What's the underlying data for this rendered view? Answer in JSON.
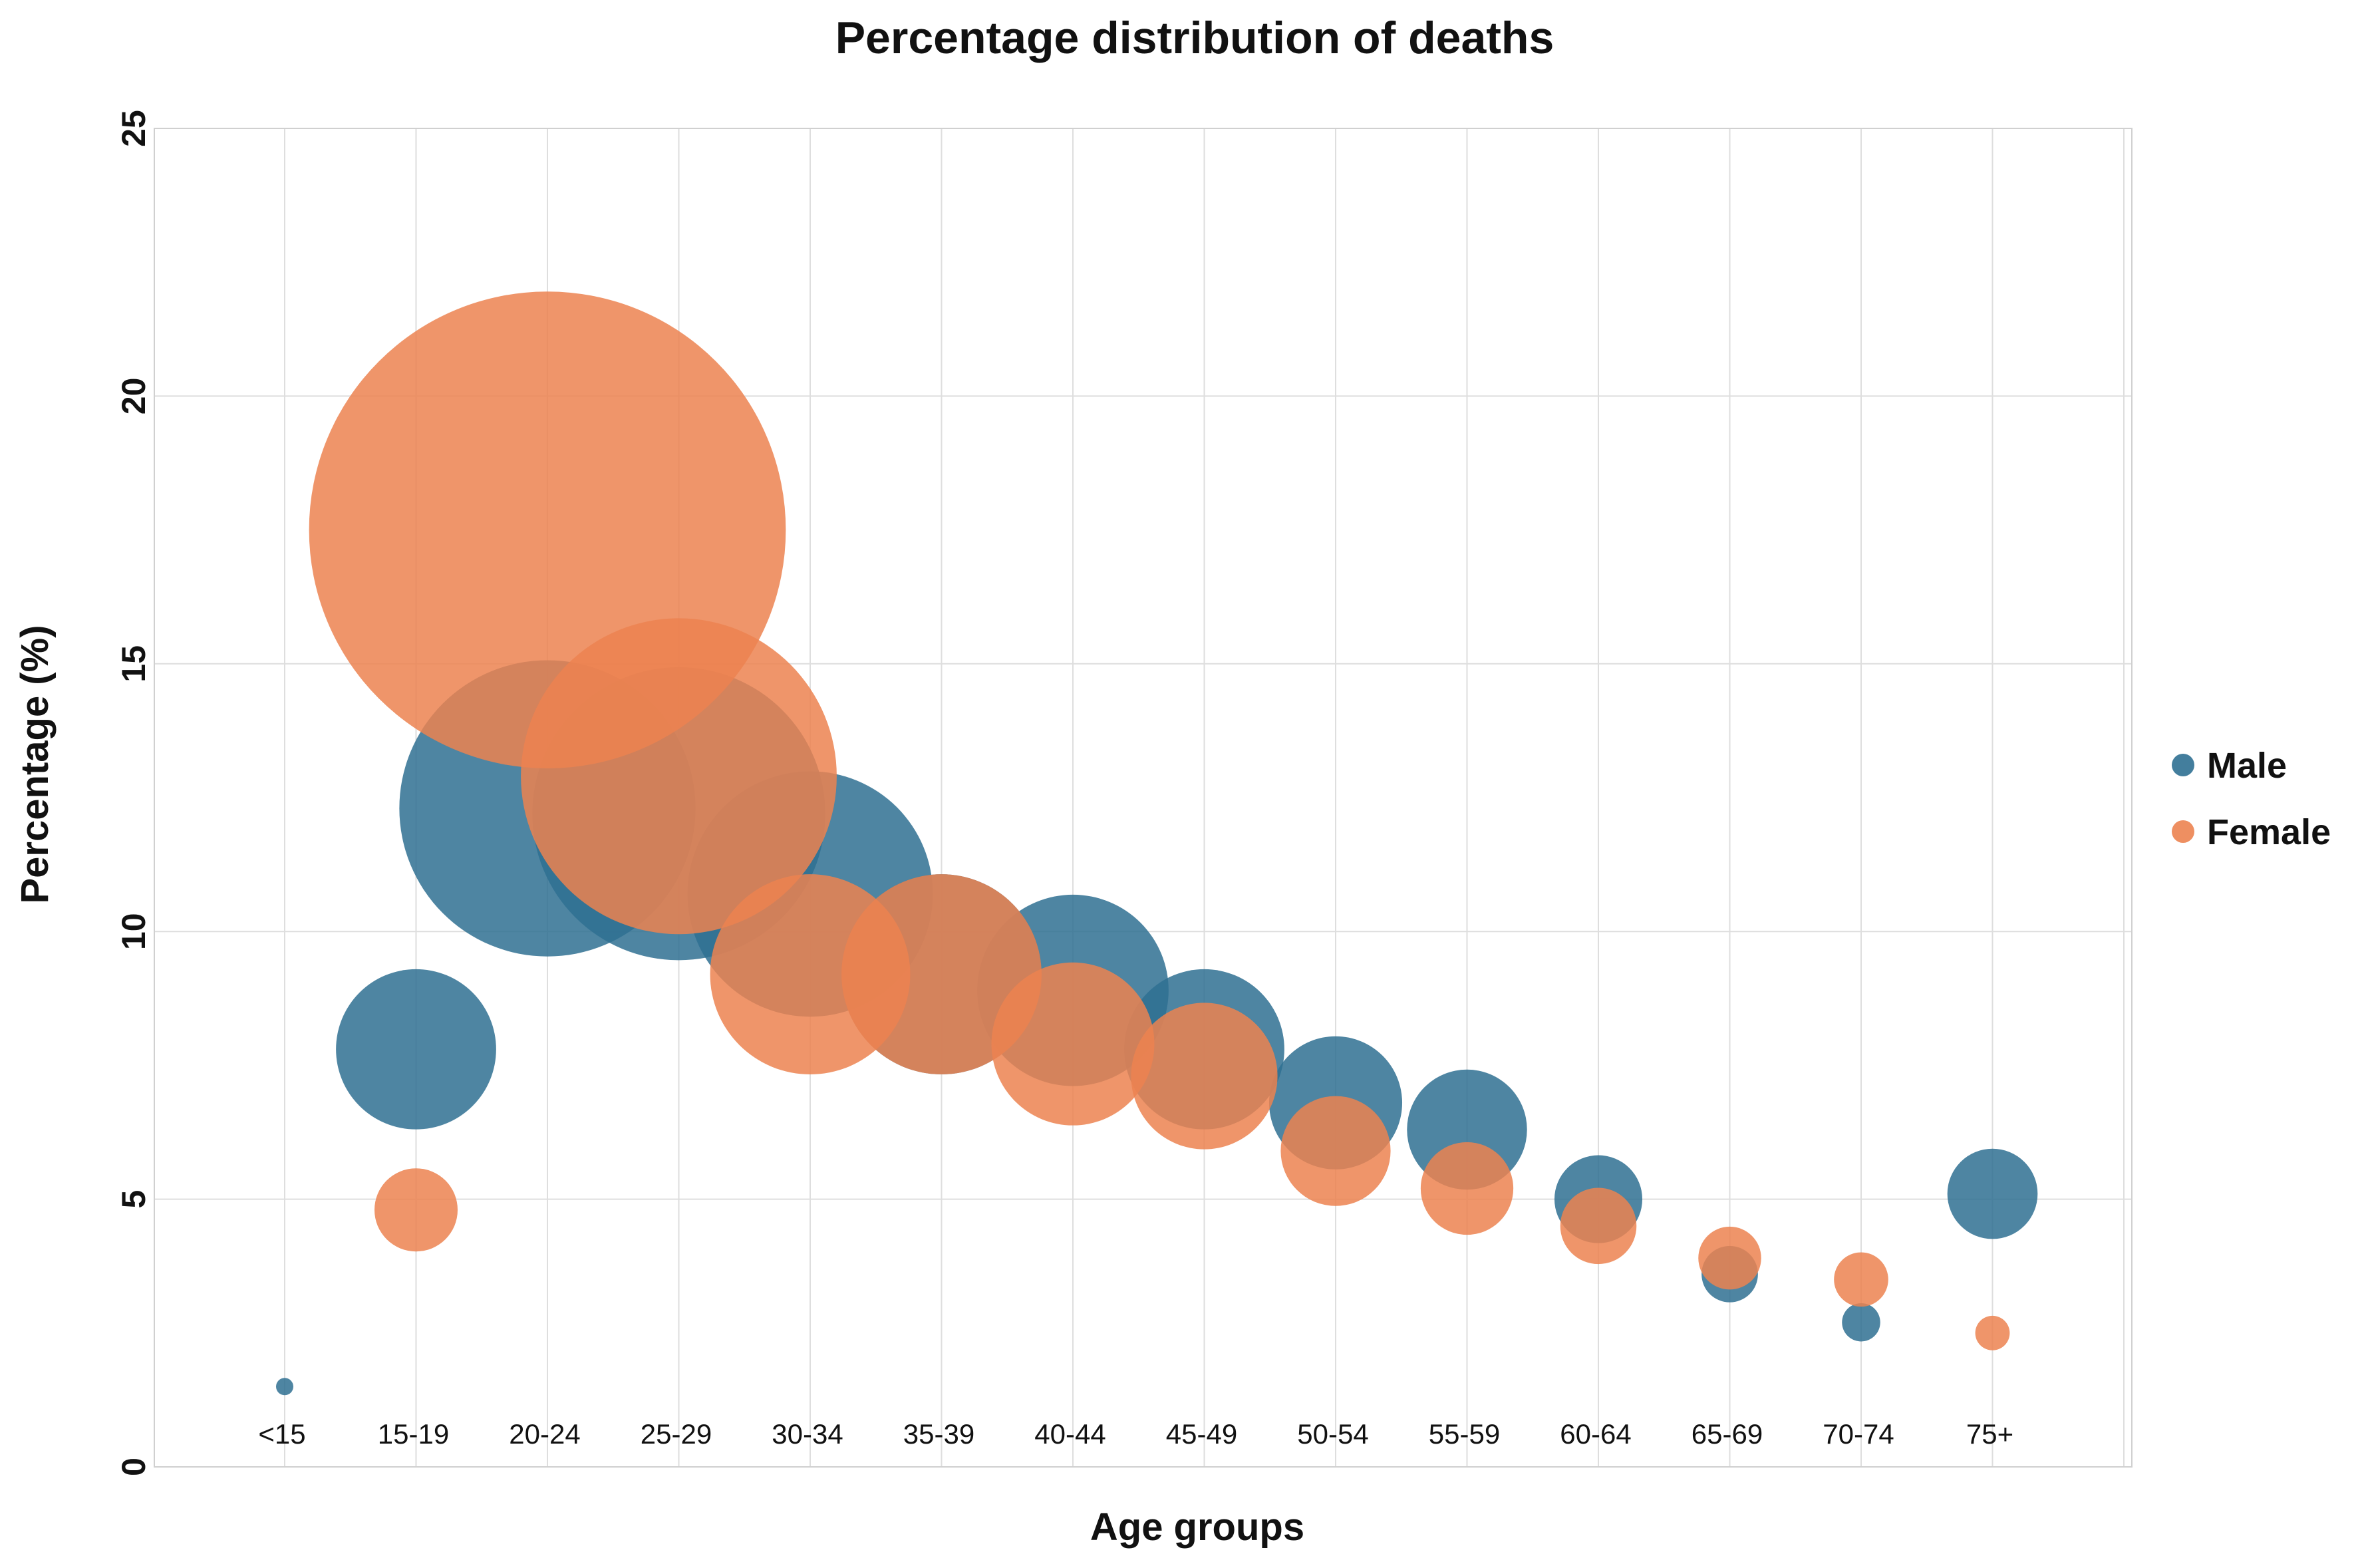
{
  "chart_data": {
    "type": "scatter",
    "subtype": "bubble",
    "title": "Percentage distribution of deaths",
    "xlabel": "Age groups",
    "ylabel": "Percentage (%)",
    "ylim": [
      0,
      25
    ],
    "yticks": [
      "0",
      "5",
      "10",
      "15",
      "20",
      "25"
    ],
    "grid": true,
    "legend_position": "right",
    "categories": [
      "<15",
      "15-19",
      "20-24",
      "25-29",
      "30-34",
      "35-39",
      "40-44",
      "45-49",
      "50-54",
      "55-59",
      "60-64",
      "65-69",
      "70-74",
      "75+"
    ],
    "series": [
      {
        "name": "Male",
        "color": "#2f7092",
        "values": [
          1.5,
          7.8,
          12.3,
          12.2,
          10.7,
          9.2,
          8.9,
          7.8,
          6.8,
          6.3,
          5.0,
          3.6,
          2.7,
          5.1
        ]
      },
      {
        "name": "Female",
        "color": "#ec8350",
        "values": [
          null,
          4.8,
          17.5,
          12.9,
          9.2,
          9.2,
          7.9,
          7.3,
          5.9,
          5.2,
          4.5,
          3.9,
          3.5,
          2.5
        ]
      }
    ]
  }
}
